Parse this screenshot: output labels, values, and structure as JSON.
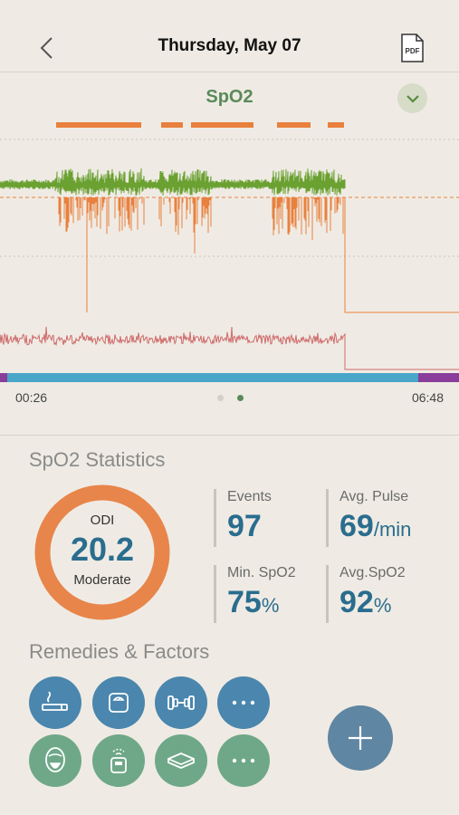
{
  "header": {
    "title": "Thursday, May 07",
    "pdf_label": "PDF"
  },
  "chart": {
    "title": "SpO2",
    "time_start": "00:26",
    "time_end": "06:48",
    "colors": {
      "spo2_normal": "#6aa131",
      "spo2_drop": "#e8803e",
      "pulse": "#cf6a6a",
      "event_marker": "#e8803e",
      "timeline": "#4aa6c9",
      "timeline_end": "#8a3d9a"
    }
  },
  "stats": {
    "section_title": "SpO2 Statistics",
    "odi": {
      "label": "ODI",
      "value": "20.2",
      "severity": "Moderate"
    },
    "events": {
      "label": "Events",
      "value": "97",
      "unit": ""
    },
    "avg_pulse": {
      "label": "Avg. Pulse",
      "value": "69",
      "unit": "/min"
    },
    "min_spo2": {
      "label": "Min. SpO2",
      "value": "75",
      "unit": "%"
    },
    "avg_spo2": {
      "label": "Avg.SpO2",
      "value": "92",
      "unit": "%"
    }
  },
  "remedies": {
    "section_title": "Remedies & Factors",
    "items": [
      {
        "icon": "smoking-icon",
        "color": "blue"
      },
      {
        "icon": "scale-icon",
        "color": "blue"
      },
      {
        "icon": "dumbbell-icon",
        "color": "blue"
      },
      {
        "icon": "more-icon",
        "color": "blue"
      },
      {
        "icon": "cpap-mask-icon",
        "color": "green"
      },
      {
        "icon": "cpap-machine-icon",
        "color": "green"
      },
      {
        "icon": "pillow-icon",
        "color": "green"
      },
      {
        "icon": "more-icon",
        "color": "green"
      }
    ]
  }
}
